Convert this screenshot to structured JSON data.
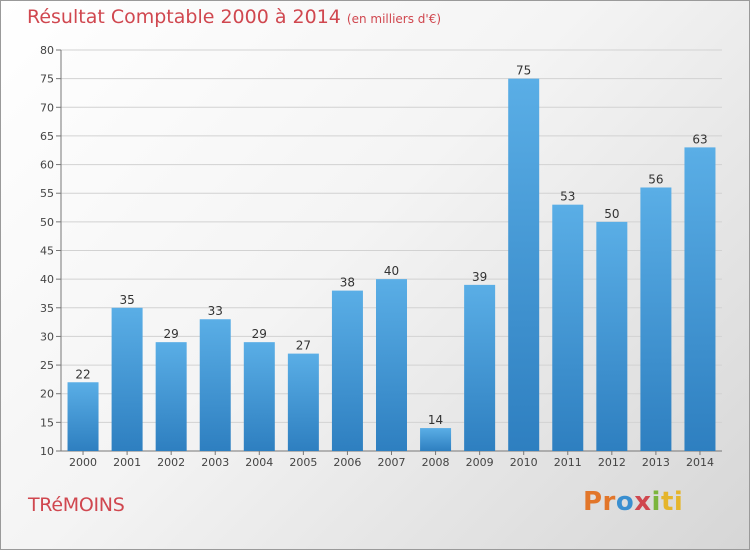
{
  "title": "Résultat Comptable 2000 à 2014",
  "subtitle": "(en milliers d'€)",
  "town": "TRéMOINS",
  "logo": {
    "p1": "Pr",
    "p2": "o",
    "p3": "x",
    "p4": "i",
    "p5": "ti"
  },
  "colors": {
    "bar_top": "#5aaee6",
    "bar_bottom": "#2e7fc0",
    "title": "#d0474f"
  },
  "chart_data": {
    "type": "bar",
    "title": "Résultat Comptable 2000 à 2014",
    "subtitle": "(en milliers d'€)",
    "categories": [
      "2000",
      "2001",
      "2002",
      "2003",
      "2004",
      "2005",
      "2006",
      "2007",
      "2008",
      "2009",
      "2010",
      "2011",
      "2012",
      "2013",
      "2014"
    ],
    "values": [
      22,
      35,
      29,
      33,
      29,
      27,
      38,
      40,
      14,
      39,
      75,
      53,
      50,
      56,
      63
    ],
    "ylim": [
      10,
      80
    ],
    "yticks": [
      10,
      15,
      20,
      25,
      30,
      35,
      40,
      45,
      50,
      55,
      60,
      65,
      70,
      75,
      80
    ],
    "grid": true,
    "xlabel": "",
    "ylabel": ""
  }
}
